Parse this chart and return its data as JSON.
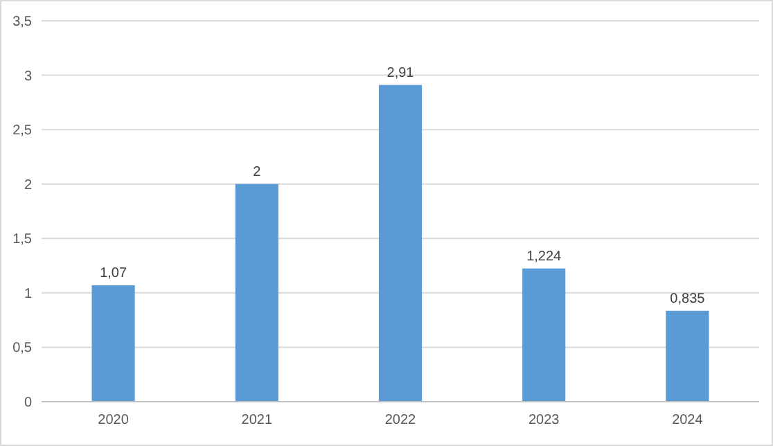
{
  "chart_data": {
    "type": "bar",
    "categories": [
      "2020",
      "2021",
      "2022",
      "2023",
      "2024"
    ],
    "values": [
      1.07,
      2,
      2.91,
      1.224,
      0.835
    ],
    "value_labels": [
      "1,07",
      "2",
      "2,91",
      "1,224",
      "0,835"
    ],
    "color": "#5b9bd5",
    "ylim": [
      0,
      3.5
    ],
    "yticks": [
      0,
      {
        "value": 0.5,
        "label": "0,5"
      },
      1,
      {
        "value": 1.5,
        "label": "1,5"
      },
      2,
      {
        "value": 2.5,
        "label": "2,5"
      },
      3,
      {
        "value": 3.5,
        "label": "3,5"
      }
    ],
    "grid": "y"
  }
}
